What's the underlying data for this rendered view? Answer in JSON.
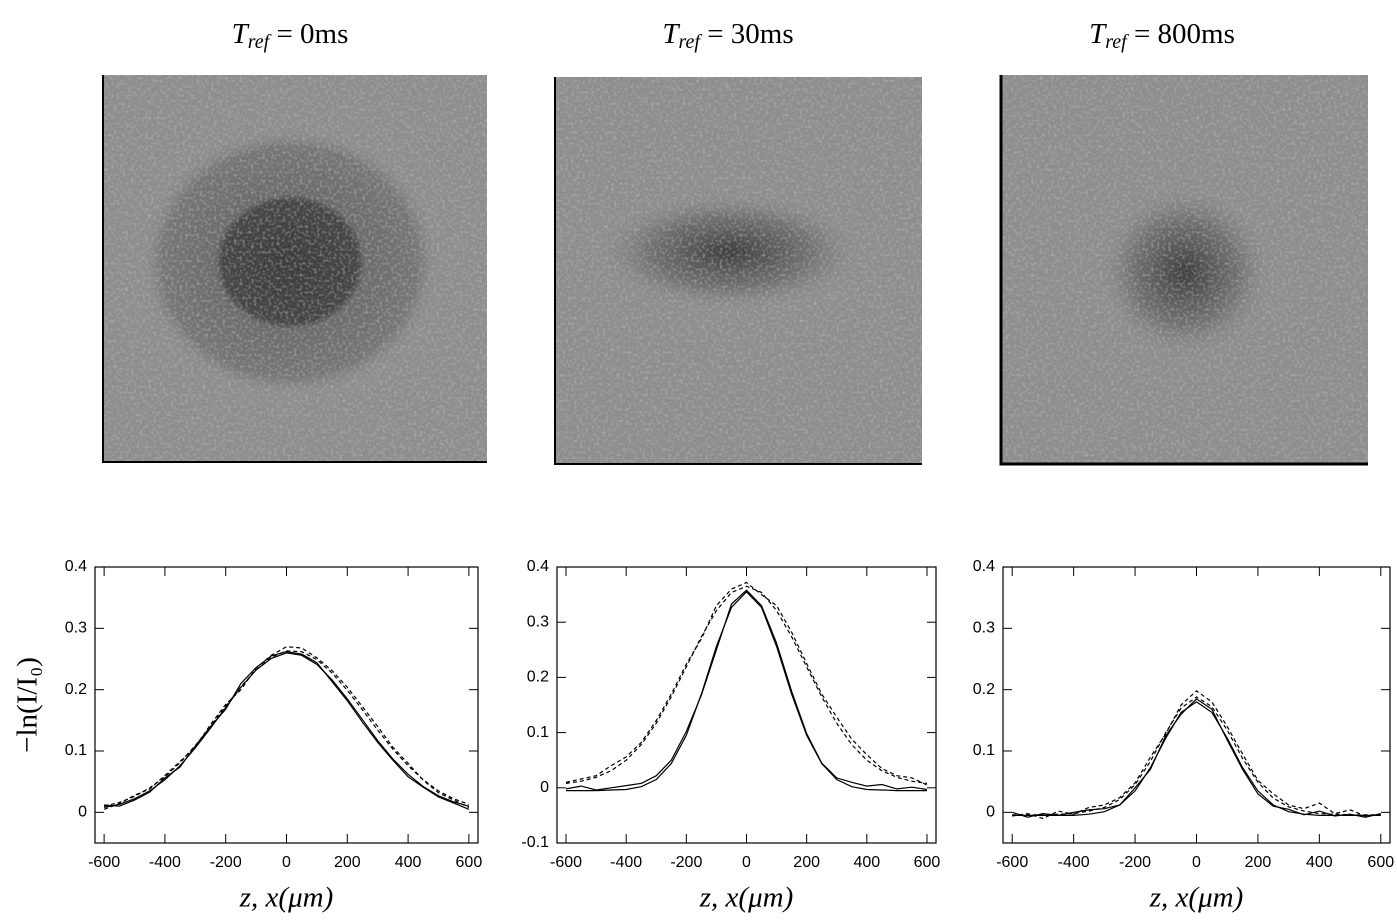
{
  "chart_data": [
    {
      "type": "line",
      "title": {
        "symbol": "T",
        "subscript": "ref",
        "text": " = 0ms"
      },
      "ylabel": "−ln(I/I₀)",
      "xlabel": "z, x(μm)",
      "xlim": [
        -630,
        630
      ],
      "ylim": [
        -0.05,
        0.4
      ],
      "xticks": [
        -600,
        -400,
        -200,
        0,
        200,
        400,
        600
      ],
      "yticks": [
        0,
        0.1,
        0.2,
        0.3,
        0.4
      ],
      "x": [
        -600,
        -550,
        -500,
        -450,
        -400,
        -350,
        -300,
        -250,
        -200,
        -150,
        -100,
        -50,
        0,
        50,
        100,
        150,
        200,
        250,
        300,
        350,
        400,
        450,
        500,
        550,
        600
      ],
      "series": [
        {
          "color": "#000000",
          "dash": false,
          "values": [
            0.012,
            0.01,
            0.02,
            0.033,
            0.056,
            0.074,
            0.108,
            0.14,
            0.168,
            0.21,
            0.236,
            0.255,
            0.262,
            0.258,
            0.244,
            0.213,
            0.182,
            0.147,
            0.114,
            0.085,
            0.058,
            0.041,
            0.025,
            0.015,
            0.005
          ]
        },
        {
          "color": "#000000",
          "dash": true,
          "values": [
            0.005,
            0.014,
            0.028,
            0.038,
            0.06,
            0.083,
            0.106,
            0.143,
            0.176,
            0.2,
            0.235,
            0.256,
            0.27,
            0.268,
            0.252,
            0.231,
            0.204,
            0.172,
            0.14,
            0.106,
            0.08,
            0.052,
            0.032,
            0.02,
            0.008
          ]
        },
        {
          "color": "#000000",
          "dash": false,
          "values": [
            0.008,
            0.013,
            0.022,
            0.035,
            0.053,
            0.076,
            0.105,
            0.137,
            0.171,
            0.204,
            0.232,
            0.251,
            0.26,
            0.256,
            0.241,
            0.216,
            0.185,
            0.151,
            0.117,
            0.087,
            0.062,
            0.042,
            0.027,
            0.017,
            0.01
          ]
        },
        {
          "color": "#000000",
          "dash": true,
          "values": [
            0.01,
            0.016,
            0.026,
            0.04,
            0.058,
            0.081,
            0.109,
            0.14,
            0.173,
            0.205,
            0.232,
            0.253,
            0.263,
            0.262,
            0.249,
            0.227,
            0.199,
            0.167,
            0.134,
            0.103,
            0.076,
            0.053,
            0.035,
            0.022,
            0.013
          ]
        }
      ]
    },
    {
      "type": "line",
      "title": {
        "symbol": "T",
        "subscript": "ref",
        "text": " = 30ms"
      },
      "xlabel": "z, x(μm)",
      "xlim": [
        -630,
        630
      ],
      "ylim": [
        -0.1,
        0.4
      ],
      "xticks": [
        -600,
        -400,
        -200,
        0,
        200,
        400,
        600
      ],
      "yticks": [
        -0.1,
        0,
        0.1,
        0.2,
        0.3,
        0.4
      ],
      "x": [
        -600,
        -550,
        -500,
        -450,
        -400,
        -350,
        -300,
        -250,
        -200,
        -150,
        -100,
        -50,
        0,
        50,
        100,
        150,
        200,
        250,
        300,
        350,
        400,
        450,
        500,
        550,
        600
      ],
      "series": [
        {
          "color": "#000000",
          "dash": false,
          "values": [
            -0.002,
            0.003,
            -0.004,
            0.0,
            0.004,
            0.008,
            0.022,
            0.05,
            0.102,
            0.168,
            0.25,
            0.333,
            0.358,
            0.33,
            0.262,
            0.175,
            0.098,
            0.045,
            0.018,
            0.01,
            0.003,
            0.006,
            -0.002,
            0.001,
            -0.003
          ]
        },
        {
          "color": "#000000",
          "dash": true,
          "values": [
            0.01,
            0.016,
            0.022,
            0.04,
            0.056,
            0.082,
            0.122,
            0.17,
            0.224,
            0.27,
            0.33,
            0.36,
            0.372,
            0.35,
            0.33,
            0.282,
            0.225,
            0.17,
            0.128,
            0.088,
            0.06,
            0.035,
            0.022,
            0.018,
            0.005
          ]
        },
        {
          "color": "#000000",
          "dash": false,
          "values": [
            -0.005,
            -0.005,
            -0.005,
            -0.004,
            -0.003,
            0.002,
            0.015,
            0.044,
            0.095,
            0.17,
            0.256,
            0.327,
            0.355,
            0.327,
            0.256,
            0.17,
            0.095,
            0.044,
            0.015,
            0.002,
            -0.003,
            -0.004,
            -0.005,
            -0.005,
            -0.005
          ]
        },
        {
          "color": "#000000",
          "dash": true,
          "values": [
            0.008,
            0.012,
            0.019,
            0.031,
            0.05,
            0.078,
            0.117,
            0.165,
            0.219,
            0.274,
            0.321,
            0.354,
            0.365,
            0.354,
            0.321,
            0.274,
            0.219,
            0.165,
            0.117,
            0.078,
            0.05,
            0.031,
            0.019,
            0.012,
            0.008
          ]
        }
      ]
    },
    {
      "type": "line",
      "title": {
        "symbol": "T",
        "subscript": "ref",
        "text": " = 800ms"
      },
      "xlabel": "z, x(μm)",
      "xlim": [
        -630,
        630
      ],
      "ylim": [
        -0.05,
        0.4
      ],
      "xticks": [
        -600,
        -400,
        -200,
        0,
        200,
        400,
        600
      ],
      "yticks": [
        0,
        0.1,
        0.2,
        0.3,
        0.4
      ],
      "x": [
        -600,
        -550,
        -500,
        -450,
        -400,
        -350,
        -300,
        -250,
        -200,
        -150,
        -100,
        -50,
        0,
        50,
        100,
        150,
        200,
        250,
        300,
        350,
        400,
        450,
        500,
        550,
        600
      ],
      "series": [
        {
          "color": "#000000",
          "dash": false,
          "values": [
            0.0,
            -0.008,
            -0.002,
            -0.005,
            0.0,
            0.004,
            0.006,
            0.012,
            0.04,
            0.07,
            0.125,
            0.16,
            0.185,
            0.168,
            0.118,
            0.07,
            0.03,
            0.01,
            0.005,
            -0.004,
            0.002,
            -0.006,
            -0.003,
            -0.008,
            -0.002
          ]
        },
        {
          "color": "#000000",
          "dash": true,
          "values": [
            -0.006,
            -0.002,
            -0.01,
            0.002,
            -0.003,
            0.008,
            0.012,
            0.024,
            0.048,
            0.09,
            0.128,
            0.175,
            0.198,
            0.18,
            0.14,
            0.095,
            0.052,
            0.03,
            0.012,
            0.006,
            0.015,
            -0.002,
            0.004,
            -0.006,
            -0.004
          ]
        },
        {
          "color": "#000000",
          "dash": false,
          "values": [
            -0.005,
            -0.005,
            -0.005,
            -0.005,
            -0.005,
            -0.003,
            0.001,
            0.012,
            0.035,
            0.073,
            0.121,
            0.163,
            0.18,
            0.163,
            0.121,
            0.073,
            0.035,
            0.012,
            0.001,
            -0.003,
            -0.005,
            -0.005,
            -0.005,
            -0.005,
            -0.005
          ]
        },
        {
          "color": "#000000",
          "dash": true,
          "values": [
            -0.004,
            -0.004,
            -0.004,
            -0.003,
            -0.002,
            0.002,
            0.008,
            0.021,
            0.045,
            0.083,
            0.13,
            0.17,
            0.188,
            0.172,
            0.134,
            0.088,
            0.049,
            0.023,
            0.009,
            0.002,
            -0.002,
            -0.003,
            -0.004,
            -0.004,
            -0.004
          ]
        }
      ]
    }
  ]
}
